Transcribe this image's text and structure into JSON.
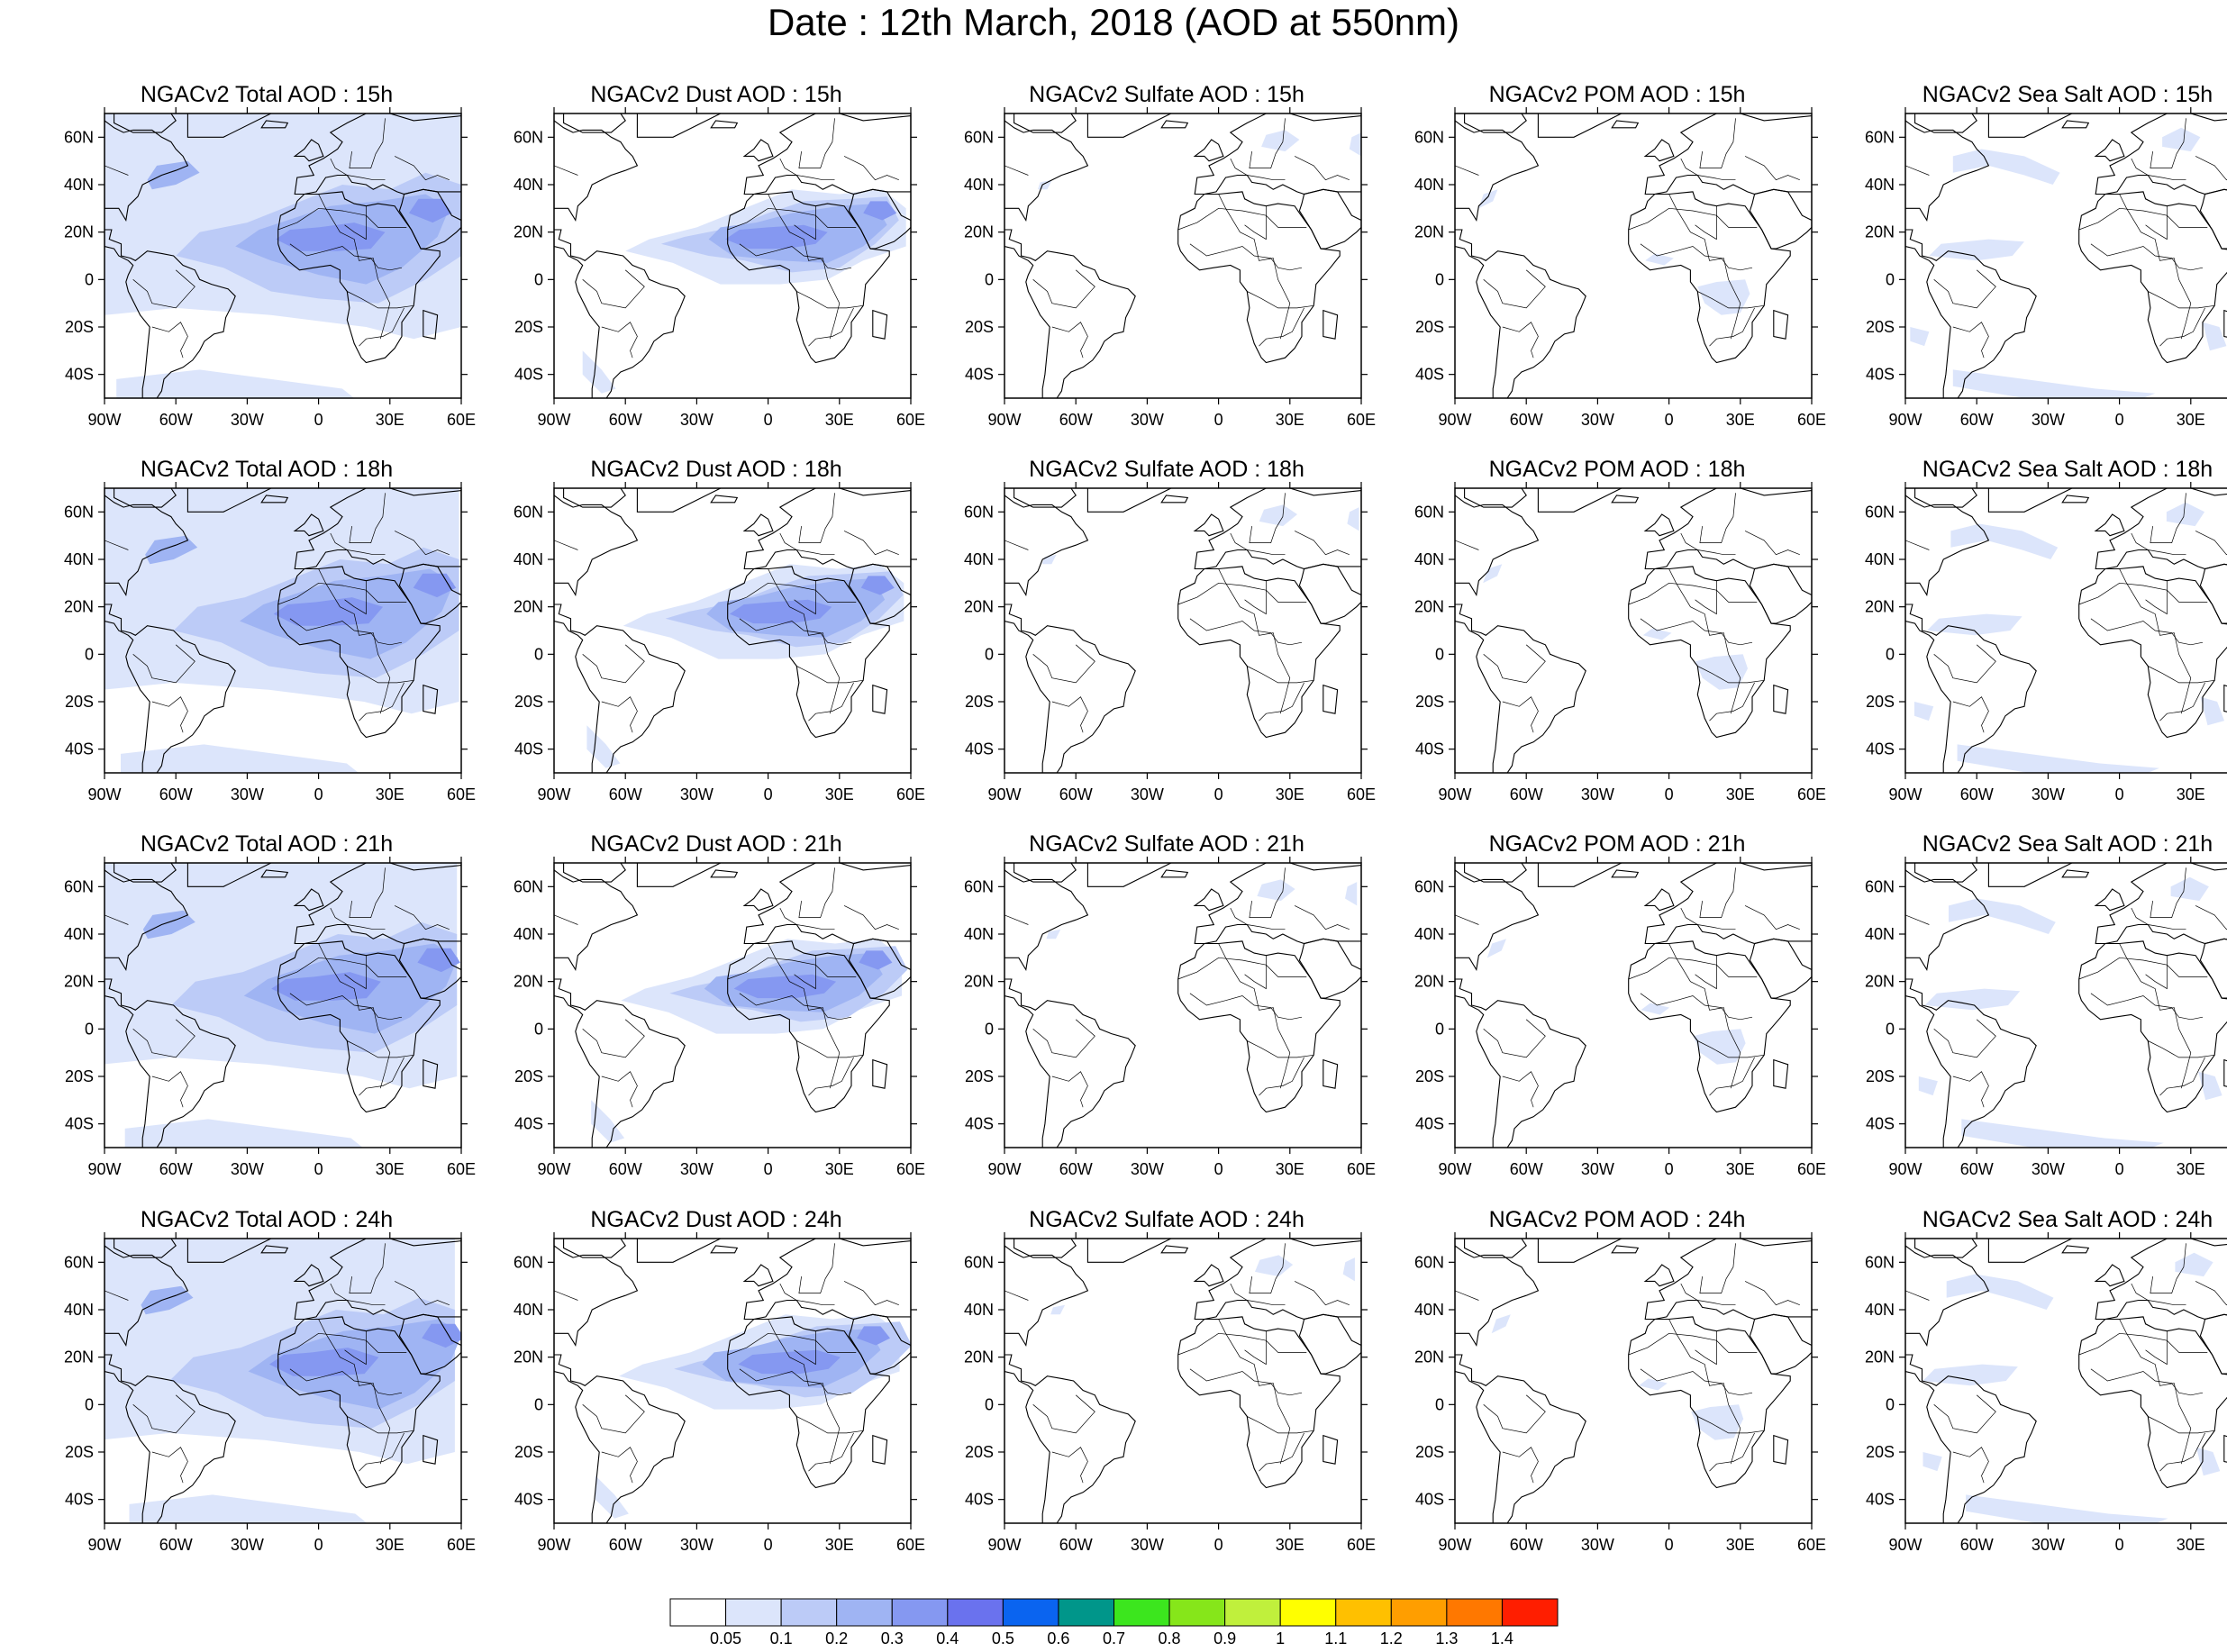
{
  "figure": {
    "title": "Date : 12th March, 2018 (AOD at 550nm)"
  },
  "map": {
    "lon_ticks": [
      "90W",
      "60W",
      "30W",
      "0",
      "30E",
      "60E"
    ],
    "lat_ticks": [
      "60N",
      "40N",
      "20N",
      "0",
      "20S",
      "40S"
    ],
    "extent": {
      "lon": [
        -90,
        60
      ],
      "lat": [
        -50,
        70
      ]
    }
  },
  "panels": [
    {
      "title": "NGACv2 Total AOD : 15h",
      "species": "total",
      "hour": 15
    },
    {
      "title": "NGACv2 Dust AOD : 15h",
      "species": "dust",
      "hour": 15
    },
    {
      "title": "NGACv2 Sulfate AOD : 15h",
      "species": "sulfate",
      "hour": 15
    },
    {
      "title": "NGACv2 POM AOD : 15h",
      "species": "pom",
      "hour": 15
    },
    {
      "title": "NGACv2 Sea Salt AOD : 15h",
      "species": "seasalt",
      "hour": 15
    },
    {
      "title": "NGACv2 Total AOD : 18h",
      "species": "total",
      "hour": 18
    },
    {
      "title": "NGACv2 Dust AOD : 18h",
      "species": "dust",
      "hour": 18
    },
    {
      "title": "NGACv2 Sulfate AOD : 18h",
      "species": "sulfate",
      "hour": 18
    },
    {
      "title": "NGACv2 POM AOD : 18h",
      "species": "pom",
      "hour": 18
    },
    {
      "title": "NGACv2 Sea Salt AOD : 18h",
      "species": "seasalt",
      "hour": 18
    },
    {
      "title": "NGACv2 Total AOD : 21h",
      "species": "total",
      "hour": 21
    },
    {
      "title": "NGACv2 Dust AOD : 21h",
      "species": "dust",
      "hour": 21
    },
    {
      "title": "NGACv2 Sulfate AOD : 21h",
      "species": "sulfate",
      "hour": 21
    },
    {
      "title": "NGACv2 POM AOD : 21h",
      "species": "pom",
      "hour": 21
    },
    {
      "title": "NGACv2 Sea Salt AOD : 21h",
      "species": "seasalt",
      "hour": 21
    },
    {
      "title": "NGACv2 Total AOD : 24h",
      "species": "total",
      "hour": 24
    },
    {
      "title": "NGACv2 Dust AOD : 24h",
      "species": "dust",
      "hour": 24
    },
    {
      "title": "NGACv2 Sulfate AOD : 24h",
      "species": "sulfate",
      "hour": 24
    },
    {
      "title": "NGACv2 POM AOD : 24h",
      "species": "pom",
      "hour": 24
    },
    {
      "title": "NGACv2 Sea Salt  AOD : 24h",
      "species": "seasalt",
      "hour": 24
    }
  ],
  "colorbar": {
    "colors": [
      "#ffffff",
      "#dce5fb",
      "#bccbf7",
      "#9fb4f3",
      "#8598f1",
      "#6a72ee",
      "#0a64f0",
      "#00968a",
      "#3ce61e",
      "#86e61a",
      "#c0f03c",
      "#ffff00",
      "#ffc000",
      "#ff9e00",
      "#ff7800",
      "#ff1e00"
    ],
    "labels": [
      "0.05",
      "0.1",
      "0.2",
      "0.3",
      "0.4",
      "0.5",
      "0.6",
      "0.7",
      "0.8",
      "0.9",
      "1",
      "1.1",
      "1.2",
      "1.3",
      "1.4"
    ]
  },
  "colors": {
    "coastline": "#000000",
    "aod_light": "#dce5fb",
    "aod_low": "#bccbf7",
    "aod_mid": "#9fb4f3",
    "aod_high": "#8598f1",
    "aod_peak": "#6a72ee"
  }
}
